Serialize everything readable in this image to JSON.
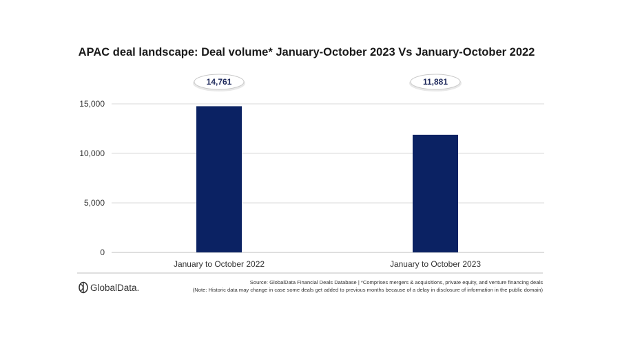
{
  "chart_data": {
    "type": "bar",
    "title": "APAC deal landscape: Deal volume* January-October 2023 Vs January-October 2022",
    "categories": [
      "January to October 2022",
      "January to October 2023"
    ],
    "values": [
      14761,
      11881
    ],
    "data_labels": [
      "14,761",
      "11,881"
    ],
    "y_ticks": [
      0,
      5000,
      10000,
      15000
    ],
    "y_tick_labels": [
      "0",
      "5,000",
      "10,000",
      "15,000"
    ],
    "ylim": [
      0,
      15000
    ],
    "xlabel": "",
    "ylabel": "",
    "grid": true,
    "legend": "none",
    "bar_color": "#0b2263"
  },
  "footer": {
    "logo_text": "GlobalData.",
    "source_line": "Source: GlobalData Financial Deals Database | *Comprises mergers & acquisitions, private equity, and venture financing deals",
    "note_line": "(Note: Historic data may change in case some deals get added to previous months because of a delay in disclosure of information in the public domain)"
  },
  "colors": {
    "bar": "#0b2263",
    "gridline": "#d9d9d9",
    "label_text": "#1f2a5c"
  }
}
